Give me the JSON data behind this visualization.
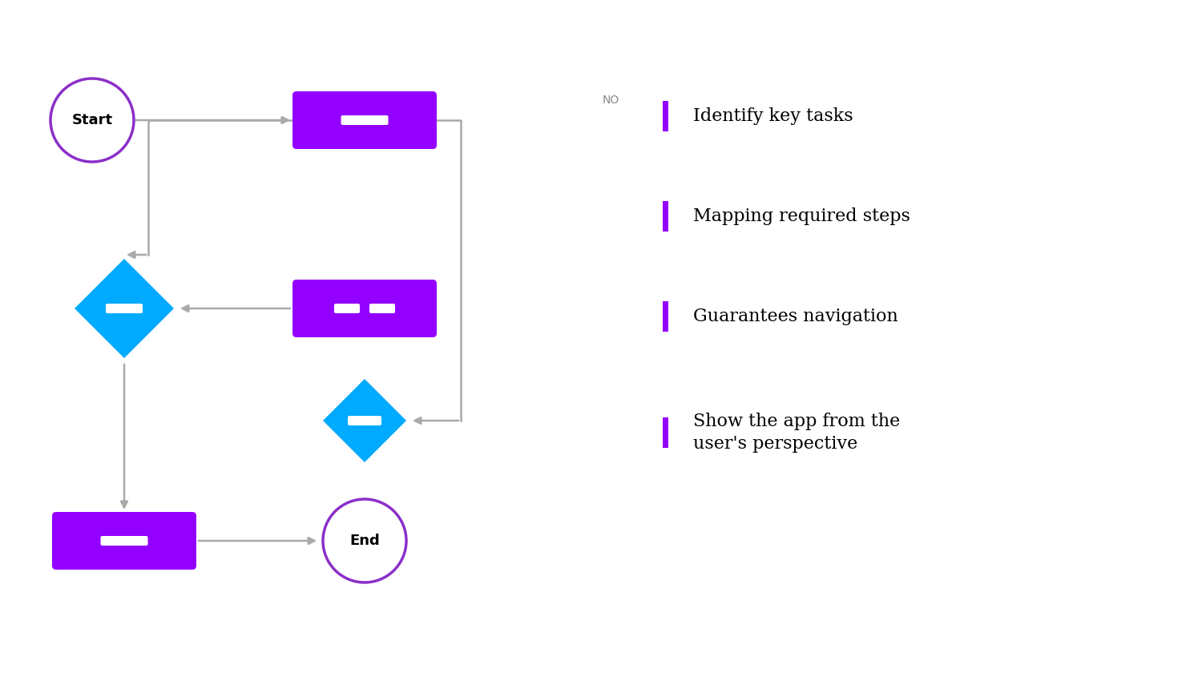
{
  "bg_color": "#ffffff",
  "purple_color": "#8B00FF",
  "purple_fill": "#9400FF",
  "blue_fill": "#00AAFF",
  "circle_edge_color": "#8B2FC9",
  "arrow_color": "#AAAAAA",
  "text_color_white": "#FFFFFF",
  "text_color_black": "#000000",
  "legend_bar_color": "#9400FF",
  "legend_items": [
    "Identify key tasks",
    "Mapping required steps",
    "Guarantees navigation",
    "Show the app from the\nuser's perspective"
  ],
  "start_label": "Start",
  "end_label": "End",
  "no_label": "NO"
}
